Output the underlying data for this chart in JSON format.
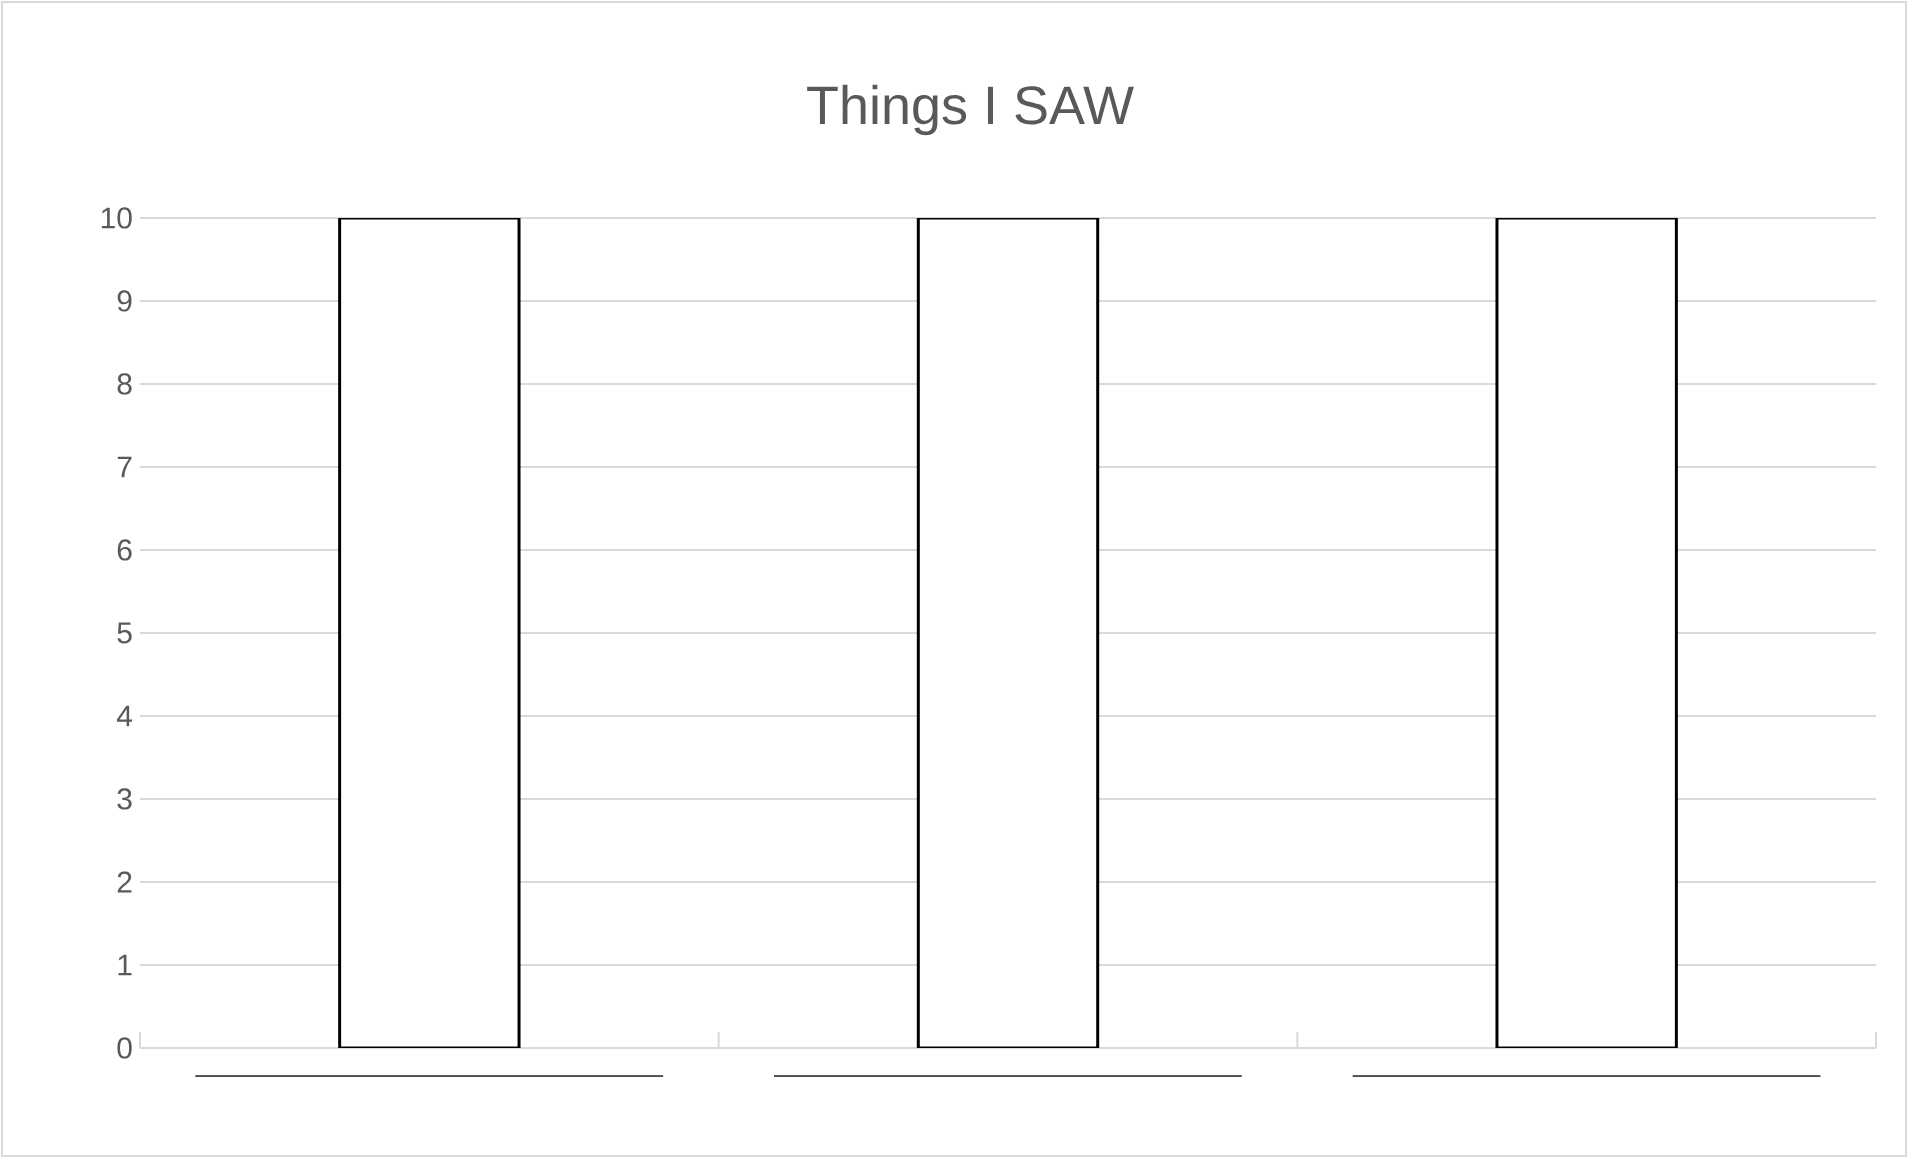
{
  "chart_data": {
    "type": "bar",
    "title": "Things I SAW",
    "categories": [
      "____________________________",
      "____________________________",
      "____________________________"
    ],
    "values": [
      10,
      10,
      10
    ],
    "color": "#ffffff",
    "ylim": [
      0,
      10
    ],
    "yticks": [
      0,
      1,
      2,
      3,
      4,
      5,
      6,
      7,
      8,
      9,
      10
    ],
    "grid": "y"
  }
}
